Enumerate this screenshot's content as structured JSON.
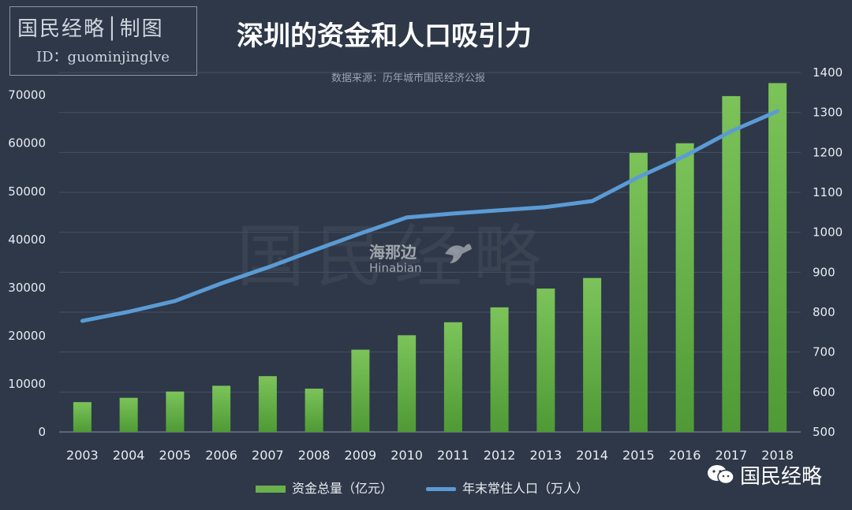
{
  "brand": {
    "title": "国民经略│制图",
    "id_line": "ID：guominjinglve"
  },
  "footer": {
    "account": "国民经略"
  },
  "watermarks": {
    "main": "国民经略",
    "partner_cn": "海那边",
    "partner_en": "Hinabian"
  },
  "colors": {
    "background": "#2e3848",
    "bar": "#6ab04c",
    "line": "#5b9bd5"
  },
  "chart_data": {
    "type": "bar",
    "title": "深圳的资金和人口吸引力",
    "subtitle": "数据来源：历年城市国民经济公报",
    "categories": [
      "2003",
      "2004",
      "2005",
      "2006",
      "2007",
      "2008",
      "2009",
      "2010",
      "2011",
      "2012",
      "2013",
      "2014",
      "2015",
      "2016",
      "2017",
      "2018"
    ],
    "y_left": {
      "ticks": [
        "0",
        "10000",
        "20000",
        "30000",
        "40000",
        "50000",
        "60000",
        "70000"
      ],
      "ylim": [
        0,
        74700
      ]
    },
    "y_right": {
      "ticks": [
        "500",
        "600",
        "700",
        "800",
        "900",
        "1000",
        "1100",
        "1200",
        "1300",
        "1400"
      ],
      "ylim": [
        500,
        1400
      ]
    },
    "grid": true,
    "legend_position": "bottom",
    "series": [
      {
        "name": "资金总量（亿元）",
        "type": "bar",
        "axis": "left",
        "values": [
          6200,
          7100,
          8400,
          9600,
          11600,
          9000,
          17100,
          20100,
          22800,
          25900,
          29800,
          32000,
          58000,
          60000,
          69800,
          72500
        ]
      },
      {
        "name": "年末常住人口（万人）",
        "type": "line",
        "axis": "right",
        "values": [
          778,
          801,
          828,
          872,
          912,
          955,
          997,
          1037,
          1047,
          1055,
          1063,
          1078,
          1138,
          1191,
          1253,
          1303
        ]
      }
    ]
  }
}
